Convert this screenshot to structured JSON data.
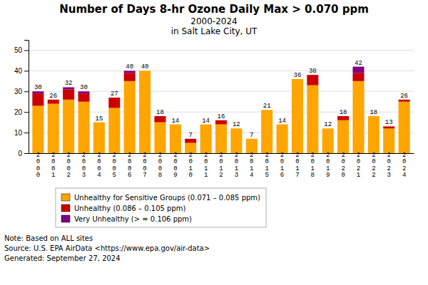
{
  "chart_data": {
    "type": "bar",
    "stacked": true,
    "title": "Number of Days 8-hr Ozone Daily Max > 0.070 ppm",
    "subtitle": [
      "2000-2024",
      "in Salt Lake City, UT"
    ],
    "categories": [
      "2000",
      "2001",
      "2002",
      "2003",
      "2004",
      "2005",
      "2006",
      "2007",
      "2008",
      "2009",
      "2010",
      "2011",
      "2012",
      "2013",
      "2014",
      "2015",
      "2016",
      "2017",
      "2018",
      "2019",
      "2020",
      "2021",
      "2022",
      "2023",
      "2024"
    ],
    "series": [
      {
        "name": "Unhealthy for Sensitive Groups (0.071 – 0.085 ppm)",
        "color": "#FFA500",
        "values": [
          23,
          24,
          26,
          25,
          15,
          22,
          35,
          40,
          15,
          14,
          5,
          14,
          14,
          12,
          7,
          21,
          14,
          36,
          33,
          12,
          16,
          35,
          18,
          12,
          25
        ]
      },
      {
        "name": "Unhealthy (0.086 – 0.105 ppm)",
        "color": "#CC0000",
        "values": [
          6,
          2,
          5,
          4,
          0,
          5,
          4,
          0,
          3,
          0,
          2,
          0,
          2,
          0,
          0,
          0,
          0,
          0,
          5,
          0,
          2,
          4,
          0,
          1,
          1
        ]
      },
      {
        "name": "Very Unhealthy (> =  0.106 ppm)",
        "color": "#800080",
        "values": [
          1,
          0,
          1,
          1,
          0,
          0,
          1,
          0,
          0,
          0,
          0,
          0,
          0,
          0,
          0,
          0,
          0,
          0,
          0,
          0,
          0,
          3,
          0,
          0,
          0
        ]
      }
    ],
    "totals": [
      30,
      26,
      32,
      30,
      15,
      27,
      40,
      40,
      18,
      14,
      7,
      14,
      16,
      12,
      7,
      21,
      14,
      36,
      38,
      12,
      18,
      42,
      18,
      13,
      26
    ],
    "ylim": [
      0,
      55
    ],
    "yticks": [
      0,
      10,
      20,
      30,
      40,
      50
    ],
    "grid": true,
    "legend": "bottom",
    "annotations": [
      "Note: Based on ALL sites",
      "Source: U.S. EPA AirData <https://www.epa.gov/air-data>",
      "Generated: September 27, 2024"
    ]
  }
}
